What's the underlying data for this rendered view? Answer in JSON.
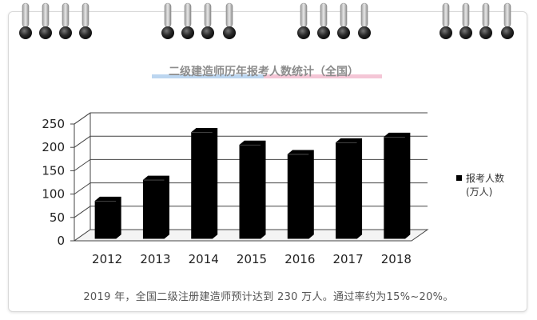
{
  "chart_data": {
    "type": "bar",
    "title": "二级建造师历年报考人数统计（全国）",
    "categories": [
      "2012",
      "2013",
      "2014",
      "2015",
      "2016",
      "2017",
      "2018"
    ],
    "series": [
      {
        "name": "报考人数(万人)",
        "values": [
          85,
          130,
          232,
          205,
          185,
          210,
          222
        ]
      }
    ],
    "legend_lines": [
      "报考人数",
      "(万人)"
    ],
    "y_ticks": [
      "0",
      "50",
      "100",
      "150",
      "200",
      "250"
    ],
    "ylim": [
      0,
      250
    ],
    "grid": true,
    "legend_position": "right",
    "bar_color": "#000000"
  },
  "caption": "2019 年，全国二级注册建造师预计达到 230 万人。通过率约为15%~20%。"
}
